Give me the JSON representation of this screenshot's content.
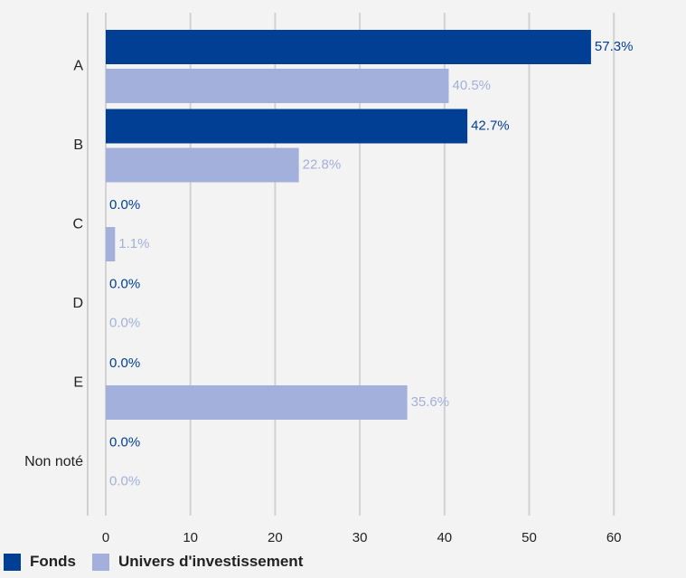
{
  "chart_data": {
    "type": "bar",
    "orientation": "horizontal",
    "categories": [
      "A",
      "B",
      "C",
      "D",
      "E",
      "Non noté"
    ],
    "series": [
      {
        "name": "Fonds",
        "values": [
          57.3,
          42.7,
          0.0,
          0.0,
          0.0,
          0.0
        ],
        "labels": [
          "57.3%",
          "42.7%",
          "0.0%",
          "0.0%",
          "0.0%",
          "0.0%"
        ],
        "color": "#003f94"
      },
      {
        "name": "Univers d'investissement",
        "values": [
          40.5,
          22.8,
          1.1,
          0.0,
          35.6,
          0.0
        ],
        "labels": [
          "40.5%",
          "22.8%",
          "1.1%",
          "0.0%",
          "35.6%",
          "0.0%"
        ],
        "color": "#a3b0dc"
      }
    ],
    "xlim": [
      0,
      60
    ],
    "ticks": [
      "0",
      "10",
      "20",
      "30",
      "40",
      "50",
      "60"
    ],
    "tick_values": [
      0,
      10,
      20,
      30,
      40,
      50,
      60
    ],
    "grid": true,
    "legend_position": "bottom-left"
  }
}
